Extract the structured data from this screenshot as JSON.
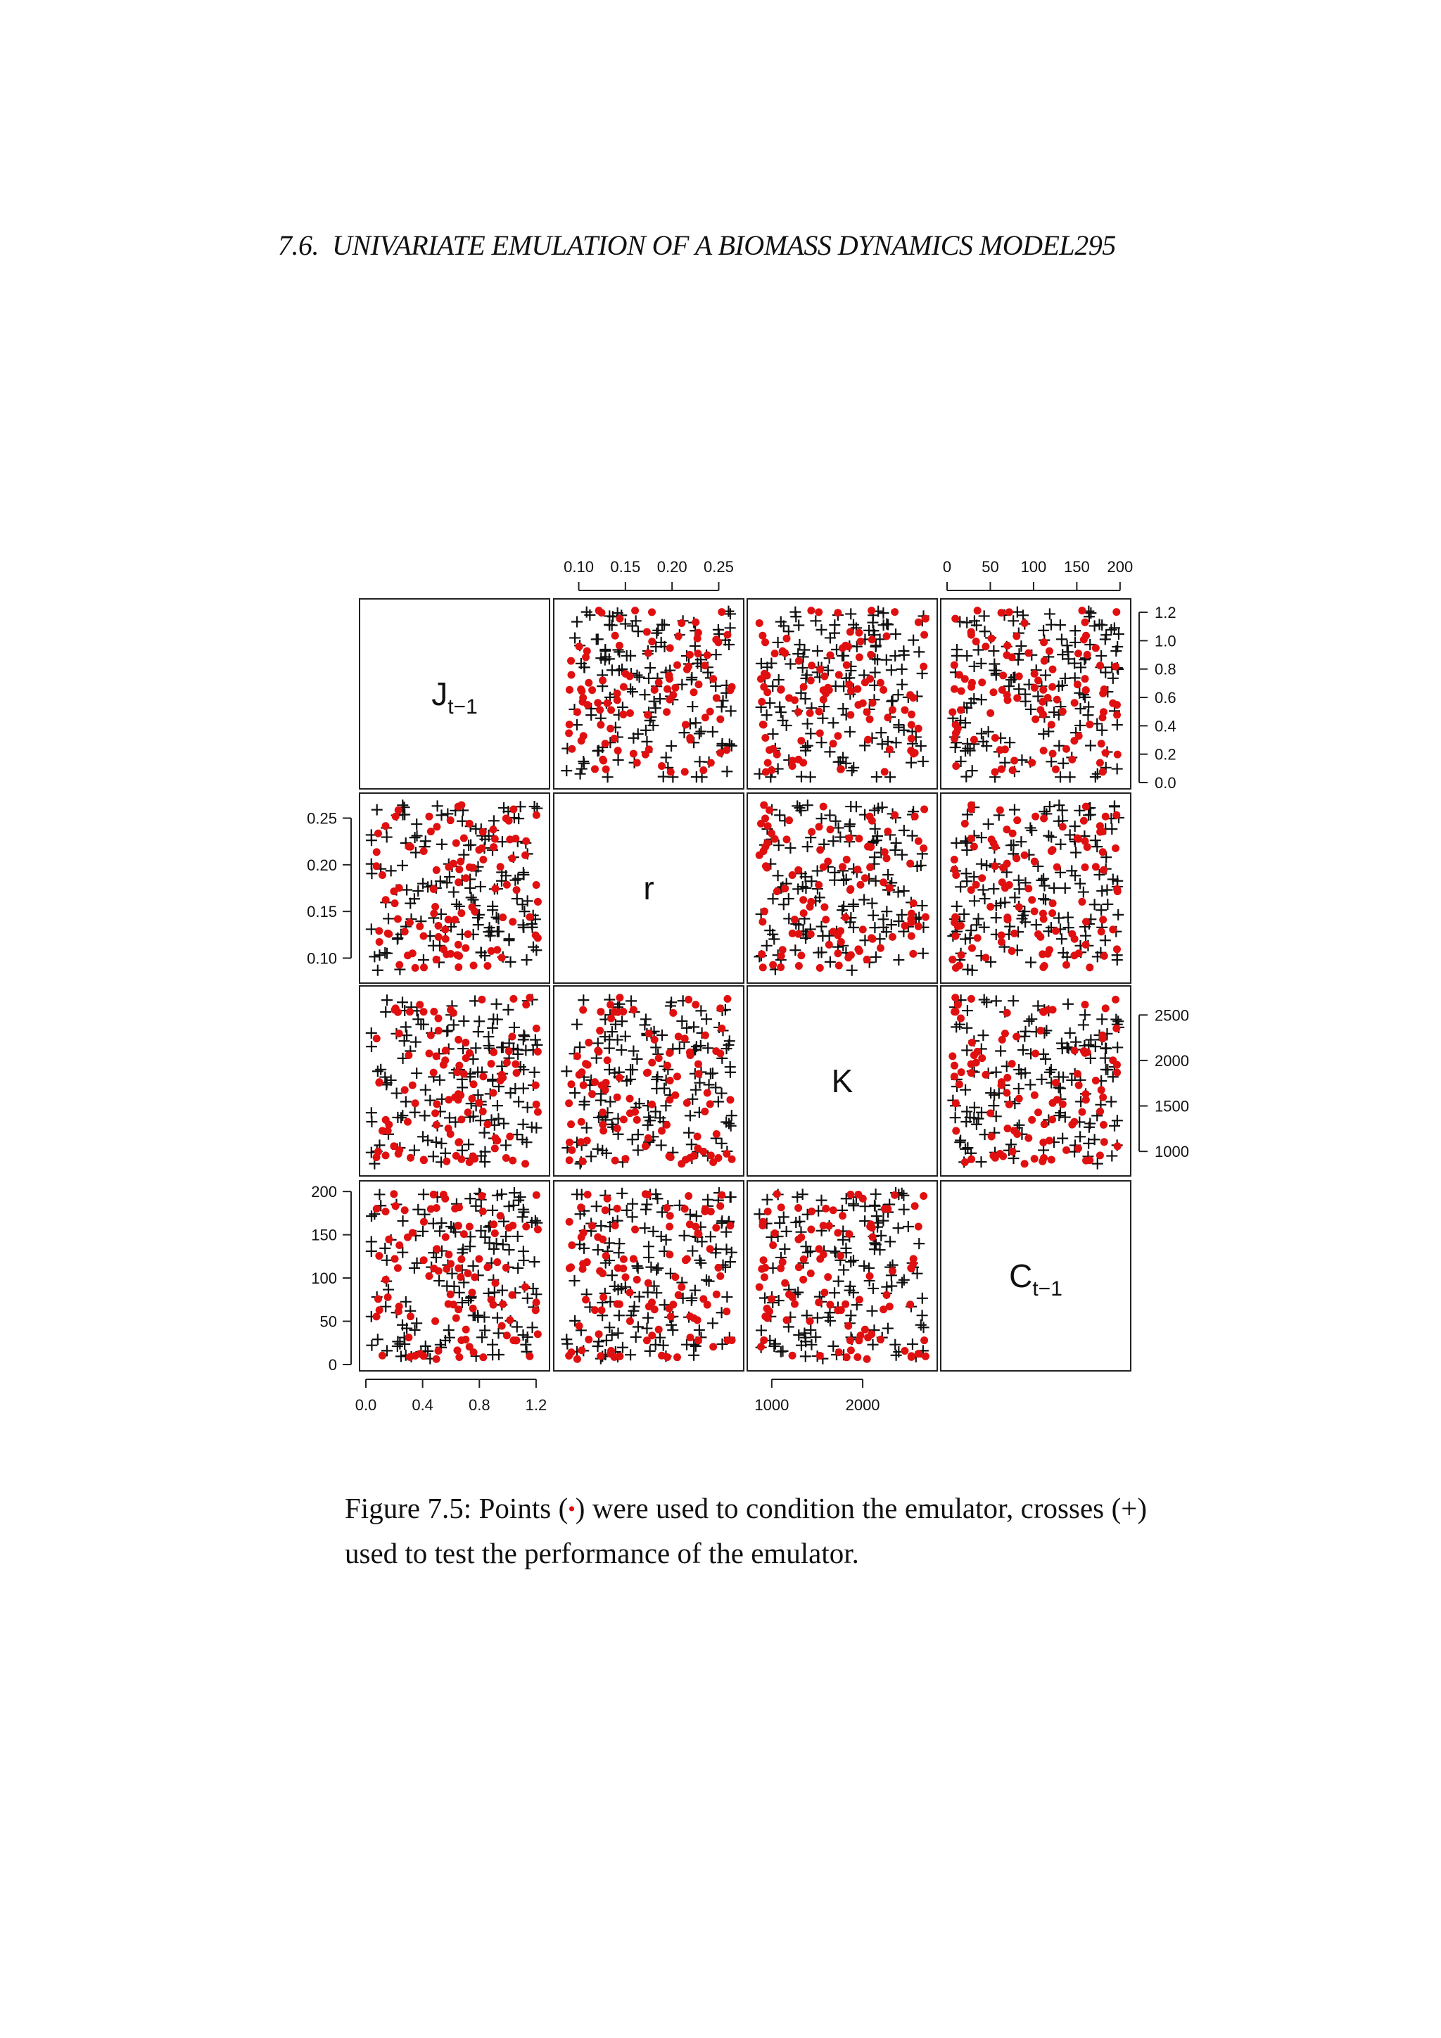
{
  "header": {
    "section": "7.6.",
    "title": "UNIVARIATE EMULATION OF A BIOMASS DYNAMICS MODEL",
    "page_number": "295"
  },
  "caption": {
    "label": "Figure 7.5:",
    "text_a": " Points (",
    "symbol_point": "•",
    "text_b": ") were used to condition the emulator, crosses (+) used to test the performance of the emulator."
  },
  "colors": {
    "conditioning_point": "#e01010",
    "test_cross": "#111111",
    "frame": "#222222"
  },
  "chart_data": {
    "type": "scatter",
    "layout": "scatterplot-matrix",
    "variables": [
      {
        "id": "J",
        "main": "J",
        "sub": "t−1",
        "range": [
          0.0,
          1.25
        ],
        "ticks": [
          0.0,
          0.2,
          0.4,
          0.6,
          0.8,
          1.0,
          1.2
        ],
        "tick_labels": [
          "0.0",
          "0.2",
          "0.4",
          "0.6",
          "0.8",
          "1.0",
          "1.2"
        ],
        "bottom_tick_labels": [
          "0.0",
          "0.4",
          "0.8",
          "1.2"
        ]
      },
      {
        "id": "r",
        "main": "r",
        "sub": "",
        "range": [
          0.08,
          0.27
        ],
        "ticks": [
          0.1,
          0.15,
          0.2,
          0.25
        ],
        "tick_labels": [
          "0.10",
          "0.15",
          "0.20",
          "0.25"
        ]
      },
      {
        "id": "K",
        "main": "K",
        "sub": "",
        "range": [
          800,
          2750
        ],
        "ticks": [
          1000,
          1500,
          2000,
          2500
        ],
        "tick_labels": [
          "1000",
          "1500",
          "2000",
          "2500"
        ],
        "bottom_tick_values": [
          1000,
          2000
        ],
        "bottom_tick_labels": [
          "1000",
          "2000"
        ]
      },
      {
        "id": "C",
        "main": "C",
        "sub": "t−1",
        "range": [
          0,
          205
        ],
        "ticks": [
          0,
          50,
          100,
          150,
          200
        ],
        "tick_labels": [
          "0",
          "50",
          "100",
          "150",
          "200"
        ]
      }
    ],
    "axes_shown": {
      "top": [
        "r",
        "C"
      ],
      "right": [
        "J",
        "K"
      ],
      "left": [
        "r",
        "C"
      ],
      "bottom": [
        "J",
        "K"
      ]
    },
    "series": [
      {
        "name": "Points (•) – condition the emulator",
        "marker": "dot",
        "color": "#e01010",
        "count": 100
      },
      {
        "name": "crosses (+) – test the performance",
        "marker": "cross",
        "color": "#111111",
        "count": 150
      }
    ]
  }
}
